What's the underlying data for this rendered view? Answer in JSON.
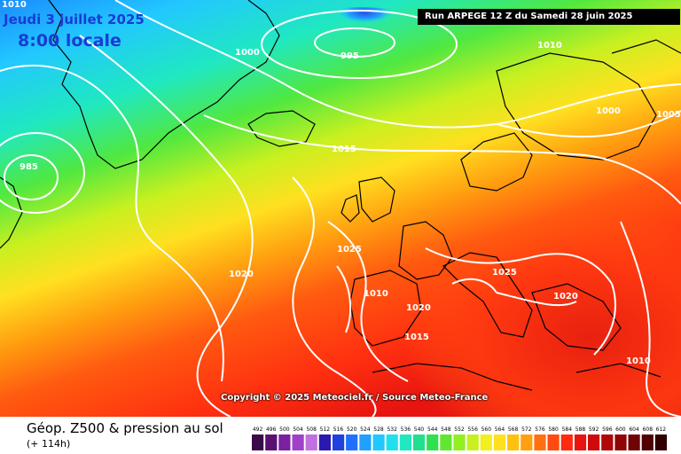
{
  "header": {
    "date": "Jeudi 3 juillet 2025",
    "local_time": "8:00 locale",
    "run_info": "Run ARPEGE 12 Z du Samedi 28 juin 2025"
  },
  "copyright": "Copyright © 2025 Meteociel.fr / Source Meteo-France",
  "footer": {
    "title": "Géop. Z500 & pression au sol",
    "lead_time": "(+ 114h)"
  },
  "legend": {
    "ticks": [
      "492",
      "496",
      "500",
      "504",
      "508",
      "512",
      "516",
      "520",
      "524",
      "528",
      "532",
      "536",
      "540",
      "544",
      "548",
      "552",
      "556",
      "560",
      "564",
      "568",
      "572",
      "576",
      "580",
      "584",
      "588",
      "592",
      "596",
      "600",
      "604",
      "608",
      "612"
    ],
    "colors": [
      "#3a0a4a",
      "#5a1070",
      "#7a20a0",
      "#a040c8",
      "#c070e0",
      "#2a1ab0",
      "#2040e0",
      "#2070ff",
      "#20a0ff",
      "#20c8ff",
      "#20e0f0",
      "#20e8c0",
      "#20e090",
      "#30e050",
      "#60e830",
      "#90f020",
      "#c8f020",
      "#f0f020",
      "#ffe020",
      "#ffc010",
      "#ffa010",
      "#ff7010",
      "#ff4a10",
      "#ff2a10",
      "#e81410",
      "#d00a0a",
      "#b00808",
      "#900606",
      "#700404",
      "#500202",
      "#300000"
    ]
  },
  "pressure_labels": [
    {
      "text": "1010",
      "where": "top-left"
    },
    {
      "text": "995",
      "where": "north-atlantic-low"
    },
    {
      "text": "1010",
      "where": "scandinavia-north"
    },
    {
      "text": "1000",
      "where": "iceland"
    },
    {
      "text": "1015",
      "where": "atlantic"
    },
    {
      "text": "1025",
      "where": "azores-high"
    },
    {
      "text": "1020",
      "where": "atlantic-south"
    },
    {
      "text": "1010",
      "where": "iberia"
    },
    {
      "text": "1020",
      "where": "france"
    },
    {
      "text": "1025",
      "where": "alps"
    },
    {
      "text": "1020",
      "where": "italy"
    },
    {
      "text": "1015",
      "where": "spain"
    },
    {
      "text": "1000",
      "where": "scandinavia-east"
    },
    {
      "text": "1005",
      "where": "east-edge"
    },
    {
      "text": "985",
      "where": "labrador-low"
    },
    {
      "text": "1010",
      "where": "mediterranean"
    }
  ],
  "colors": {
    "contour": "#ffffff",
    "coast": "#000000",
    "header_text": "#1a3bd6"
  }
}
